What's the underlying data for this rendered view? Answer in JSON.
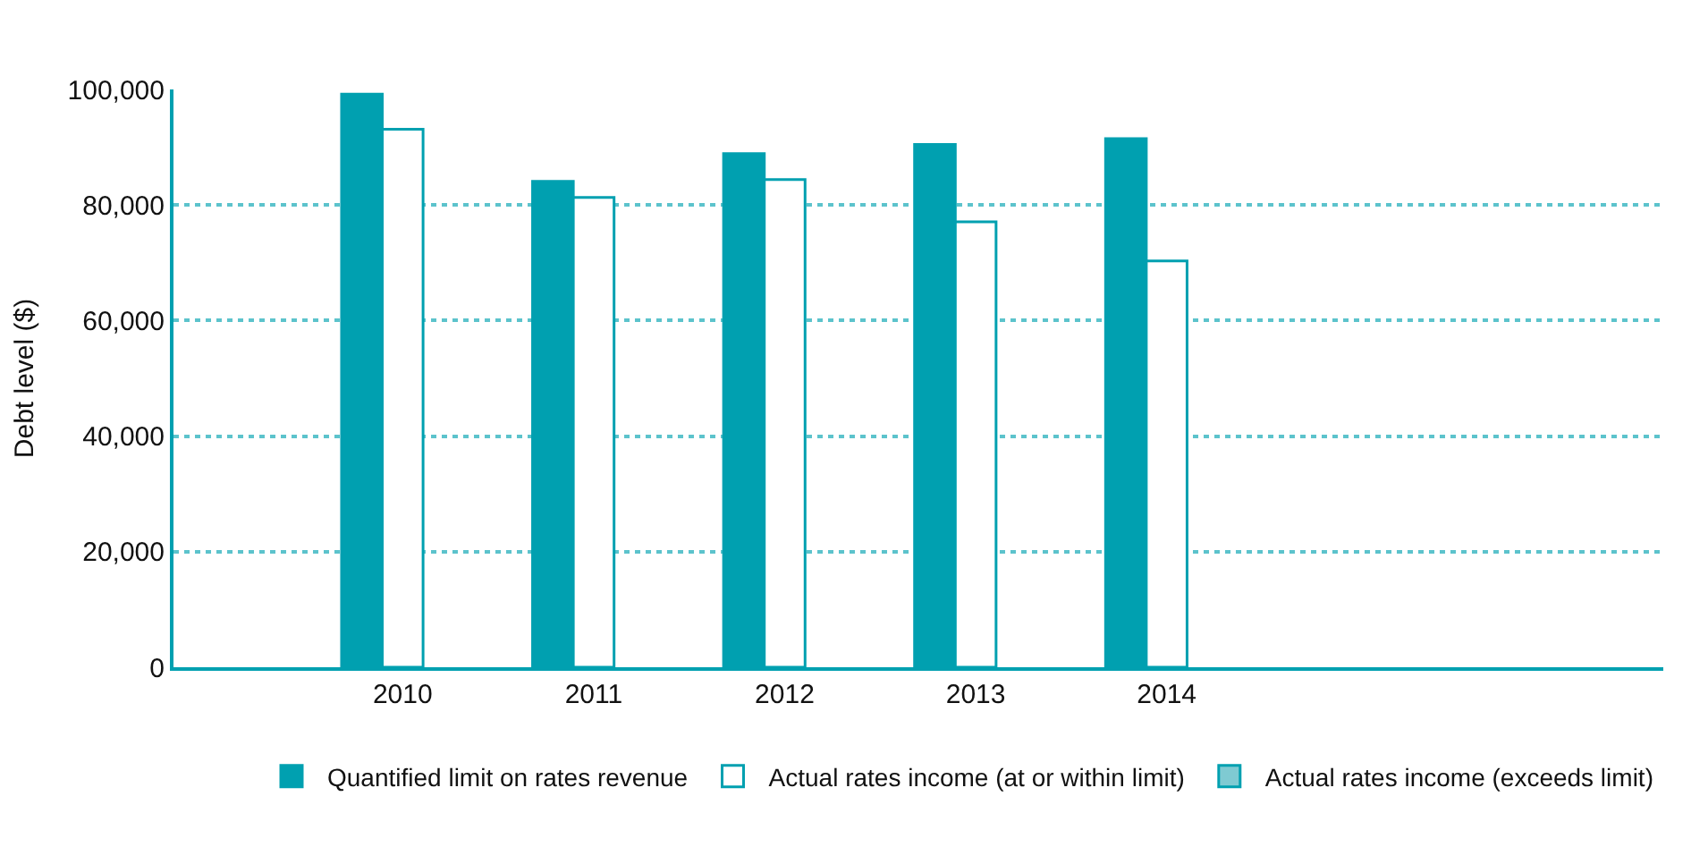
{
  "chart_data": {
    "type": "bar",
    "ylabel": "Debt level ($)",
    "categories": [
      "2010",
      "2011",
      "2012",
      "2013",
      "2014"
    ],
    "series": [
      {
        "name": "Quantified limit on rates revenue",
        "color": "#00a0b0",
        "values": [
          99200,
          84100,
          88900,
          90500,
          91500
        ]
      },
      {
        "name": "Actual rates income (at or within limit)",
        "color": "#ffffff",
        "values": [
          93100,
          81300,
          84400,
          77100,
          70300
        ]
      },
      {
        "name": "Actual rates income (exceeds limit)",
        "color": "#7fcad2",
        "values": [
          null,
          null,
          null,
          null,
          null
        ]
      }
    ],
    "ylim": [
      0,
      100000
    ],
    "yticks": [
      {
        "value": 0,
        "label": "0"
      },
      {
        "value": 20000,
        "label": "20,000"
      },
      {
        "value": 40000,
        "label": "40,000"
      },
      {
        "value": 60000,
        "label": "60,000"
      },
      {
        "value": 80000,
        "label": "80,000"
      },
      {
        "value": 100000,
        "label": "100,000"
      }
    ],
    "grid": "y",
    "legend": "bottom"
  }
}
